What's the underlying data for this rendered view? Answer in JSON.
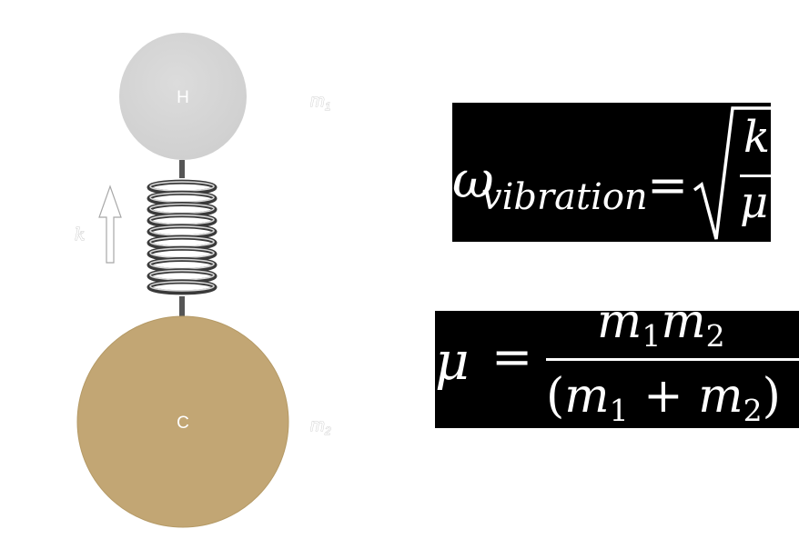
{
  "atoms": {
    "top": {
      "symbol": "H",
      "mass_label": "m",
      "mass_sub": "1",
      "color": "#d4d4d4"
    },
    "bottom": {
      "symbol": "C",
      "mass_label": "m",
      "mass_sub": "2",
      "color": "#c2a674"
    }
  },
  "spring": {
    "constant_label": "k",
    "color": "#6b6b6b"
  },
  "equations": {
    "frequency": {
      "lhs_symbol": "ω",
      "lhs_subscript": "vibration",
      "equals": "=",
      "numerator": "k",
      "denominator": "μ"
    },
    "reduced_mass": {
      "lhs": "μ",
      "equals": "=",
      "num_m1": "m",
      "num_m1_sub": "1",
      "num_m2": "m",
      "num_m2_sub": "2",
      "den_open": "(",
      "den_m1": "m",
      "den_m1_sub": "1",
      "den_plus": " + ",
      "den_m2": "m",
      "den_m2_sub": "2",
      "den_close": ")"
    }
  }
}
